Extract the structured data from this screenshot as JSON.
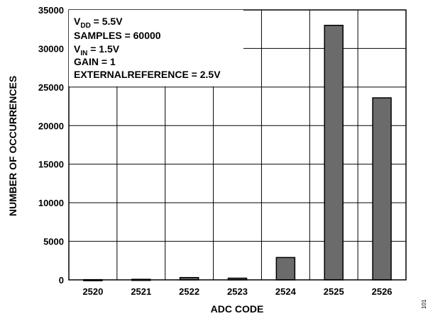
{
  "chart_data": {
    "type": "bar",
    "categories": [
      "2520",
      "2521",
      "2522",
      "2523",
      "2524",
      "2525",
      "2526"
    ],
    "values": [
      30,
      70,
      300,
      220,
      2900,
      33000,
      23600
    ],
    "ylim": [
      0,
      35000
    ],
    "yticks": [
      "0",
      "5000",
      "10000",
      "15000",
      "20000",
      "25000",
      "30000",
      "35000"
    ],
    "xlabel": "ADC CODE",
    "ylabel": "NUMBER OF OCCURRENCES",
    "grid": true,
    "bar_color": "#6b6b6b",
    "annotations": {
      "vdd": {
        "main": "V",
        "sub": "DD",
        "rest": " = 5.5V"
      },
      "samples": "SAMPLES = 60000",
      "vin": {
        "main": "V",
        "sub": "IN",
        "rest": " = 1.5V"
      },
      "gain": "GAIN = 1",
      "ref": "EXTERNALREFERENCE = 2.5V"
    }
  },
  "figure_id": "101"
}
